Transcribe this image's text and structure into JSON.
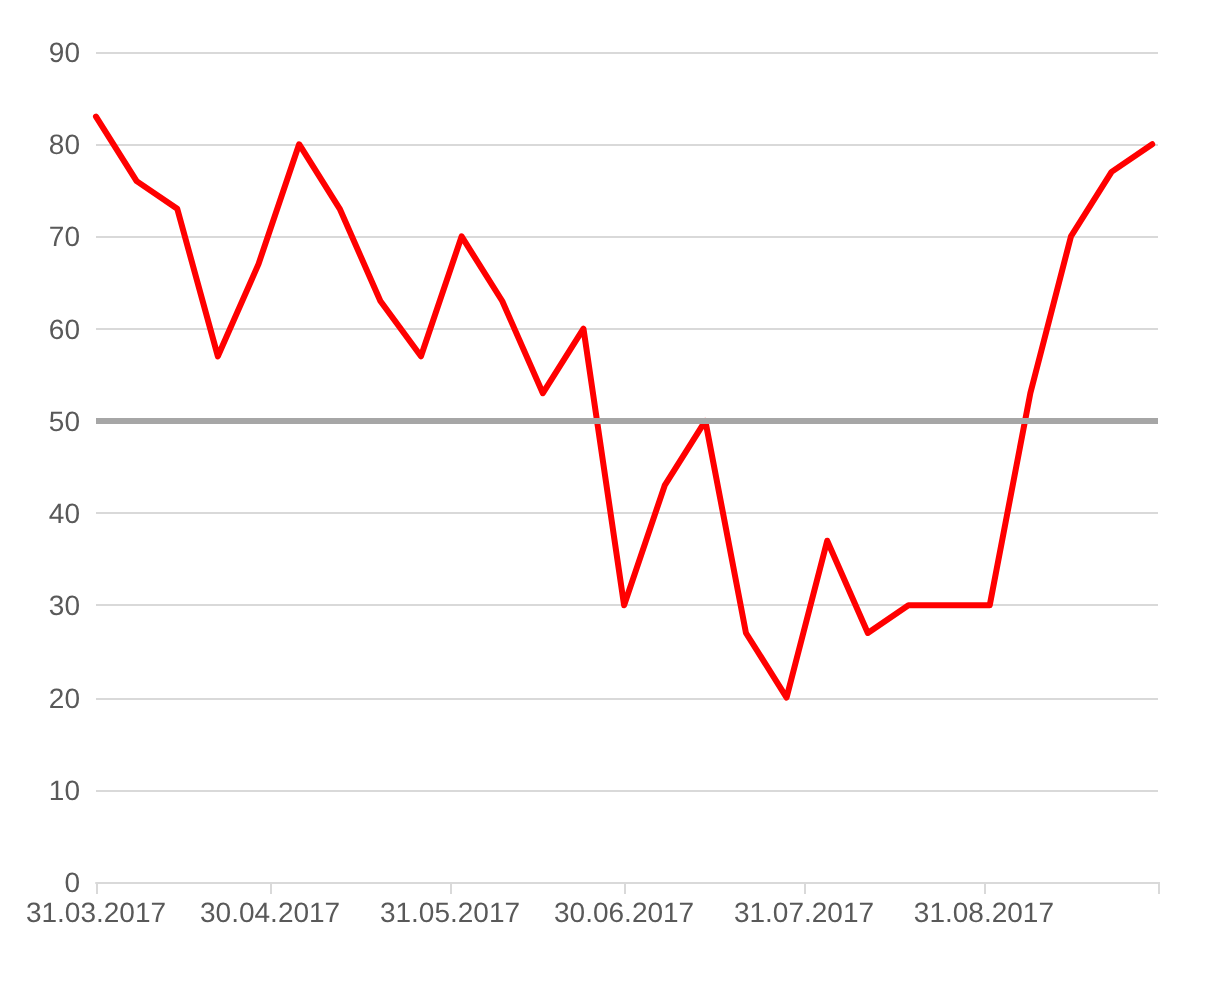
{
  "chart_data": {
    "type": "line",
    "x": [
      "2017-03-31",
      "2017-04-07",
      "2017-04-14",
      "2017-04-21",
      "2017-04-28",
      "2017-05-05",
      "2017-05-12",
      "2017-05-19",
      "2017-05-26",
      "2017-06-02",
      "2017-06-09",
      "2017-06-16",
      "2017-06-23",
      "2017-06-30",
      "2017-07-07",
      "2017-07-14",
      "2017-07-21",
      "2017-07-28",
      "2017-08-04",
      "2017-08-11",
      "2017-08-18",
      "2017-08-25",
      "2017-09-01",
      "2017-09-08",
      "2017-09-15",
      "2017-09-22",
      "2017-09-29"
    ],
    "series": [
      {
        "color": "#ff0000",
        "values": [
          83,
          76,
          73,
          57,
          67,
          80,
          73,
          63,
          57,
          70,
          63,
          53,
          60,
          30,
          43,
          50,
          27,
          20,
          37,
          27,
          30,
          30,
          30,
          53,
          70,
          77,
          80
        ]
      }
    ],
    "ref_lines": [
      {
        "axis": "y",
        "value": 50,
        "color": "#a6a6a6"
      }
    ],
    "xlim": [
      "2017-03-31",
      "2017-09-30"
    ],
    "xticks": [
      {
        "value": "2017-03-31",
        "label": "31.03.2017"
      },
      {
        "value": "2017-04-30",
        "label": "30.04.2017"
      },
      {
        "value": "2017-05-31",
        "label": "31.05.2017"
      },
      {
        "value": "2017-06-30",
        "label": "30.06.2017"
      },
      {
        "value": "2017-07-31",
        "label": "31.07.2017"
      },
      {
        "value": "2017-08-31",
        "label": "31.08.2017"
      },
      {
        "value": "2017-09-30",
        "label": null
      }
    ],
    "ylim": [
      0,
      90
    ],
    "yticks": [
      0,
      10,
      20,
      30,
      40,
      50,
      60,
      70,
      80,
      90
    ],
    "grid": "y",
    "marker": "none",
    "line_style": "solid"
  }
}
